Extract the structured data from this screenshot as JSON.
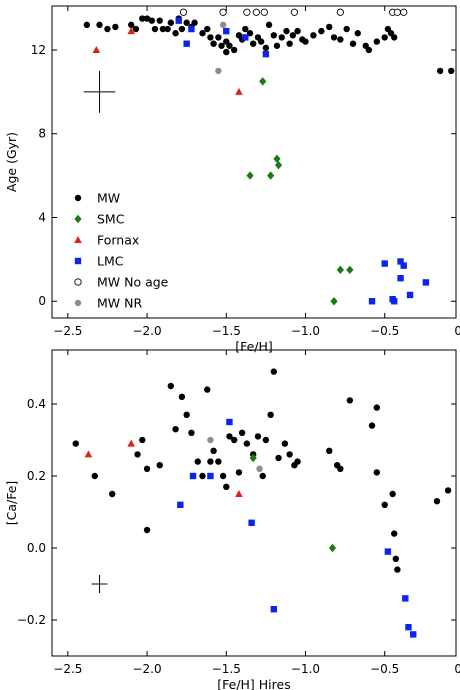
{
  "chart_data": [
    {
      "type": "scatter",
      "xlabel": "[Fe/H]",
      "ylabel": "Age (Gyr)",
      "xlim": [
        -2.6,
        -0.05
      ],
      "ylim": [
        -0.8,
        14.1
      ],
      "xticks": [
        -2.5,
        -2.0,
        -1.5,
        -1.0,
        -0.5,
        0.0
      ],
      "xtick_labels": [
        "−2.5",
        "−2.0",
        "−1.5",
        "−1.0",
        "−0.5",
        "0.0"
      ],
      "yticks": [
        0,
        4,
        8,
        12
      ],
      "ytick_labels": [
        "0",
        "4",
        "8",
        "12"
      ],
      "legend": {
        "placement": "lower-left"
      },
      "error_bar": {
        "x": -2.3,
        "y": 10.0,
        "dx": 0.1,
        "dy": 1.0
      },
      "series": [
        {
          "name": "MW",
          "marker": "circle",
          "filled": true,
          "color": "#000000",
          "points": [
            [
              -2.38,
              13.2
            ],
            [
              -2.3,
              13.2
            ],
            [
              -2.25,
              13.0
            ],
            [
              -2.2,
              13.1
            ],
            [
              -2.1,
              13.2
            ],
            [
              -2.07,
              13.0
            ],
            [
              -2.03,
              13.5
            ],
            [
              -2.0,
              13.5
            ],
            [
              -1.97,
              13.4
            ],
            [
              -1.95,
              13.0
            ],
            [
              -1.92,
              13.4
            ],
            [
              -1.9,
              13.0
            ],
            [
              -1.87,
              13.0
            ],
            [
              -1.85,
              13.3
            ],
            [
              -1.82,
              12.8
            ],
            [
              -1.8,
              13.5
            ],
            [
              -1.78,
              13.0
            ],
            [
              -1.75,
              13.3
            ],
            [
              -1.72,
              13.1
            ],
            [
              -1.7,
              13.3
            ],
            [
              -1.65,
              12.8
            ],
            [
              -1.62,
              13.0
            ],
            [
              -1.6,
              12.6
            ],
            [
              -1.58,
              12.3
            ],
            [
              -1.55,
              12.6
            ],
            [
              -1.53,
              12.2
            ],
            [
              -1.5,
              12.4
            ],
            [
              -1.5,
              11.9
            ],
            [
              -1.48,
              12.2
            ],
            [
              -1.45,
              12.0
            ],
            [
              -1.42,
              12.7
            ],
            [
              -1.4,
              12.5
            ],
            [
              -1.38,
              13.0
            ],
            [
              -1.35,
              12.8
            ],
            [
              -1.33,
              12.3
            ],
            [
              -1.3,
              12.6
            ],
            [
              -1.28,
              12.4
            ],
            [
              -1.25,
              12.1
            ],
            [
              -1.23,
              13.2
            ],
            [
              -1.2,
              12.7
            ],
            [
              -1.18,
              12.2
            ],
            [
              -1.15,
              12.6
            ],
            [
              -1.12,
              12.9
            ],
            [
              -1.1,
              12.3
            ],
            [
              -1.08,
              12.7
            ],
            [
              -1.05,
              12.9
            ],
            [
              -1.02,
              12.5
            ],
            [
              -1.0,
              12.4
            ],
            [
              -0.95,
              12.7
            ],
            [
              -0.9,
              12.9
            ],
            [
              -0.85,
              13.1
            ],
            [
              -0.82,
              12.6
            ],
            [
              -0.78,
              12.5
            ],
            [
              -0.74,
              13.0
            ],
            [
              -0.7,
              12.3
            ],
            [
              -0.67,
              12.8
            ],
            [
              -0.62,
              12.2
            ],
            [
              -0.6,
              12.0
            ],
            [
              -0.55,
              12.4
            ],
            [
              -0.5,
              12.6
            ],
            [
              -0.48,
              13.0
            ],
            [
              -0.46,
              12.8
            ],
            [
              -0.44,
              12.6
            ],
            [
              -0.15,
              11.0
            ],
            [
              -0.08,
              11.0
            ]
          ]
        },
        {
          "name": "SMC",
          "marker": "diamond",
          "filled": true,
          "color": "#1b7a12",
          "points": [
            [
              -1.27,
              10.5
            ],
            [
              -1.18,
              6.8
            ],
            [
              -1.17,
              6.5
            ],
            [
              -1.22,
              6.0
            ],
            [
              -1.35,
              6.0
            ],
            [
              -0.78,
              1.5
            ],
            [
              -0.72,
              1.5
            ],
            [
              -0.82,
              0.0
            ]
          ]
        },
        {
          "name": "Fornax",
          "marker": "triangle",
          "filled": true,
          "color": "#e0201b",
          "points": [
            [
              -2.32,
              12.0
            ],
            [
              -2.1,
              12.9
            ],
            [
              -1.42,
              10.0
            ]
          ]
        },
        {
          "name": "LMC",
          "marker": "square",
          "filled": true,
          "color": "#0b24f0",
          "points": [
            [
              -1.8,
              13.4
            ],
            [
              -1.75,
              12.3
            ],
            [
              -1.72,
              13.0
            ],
            [
              -1.5,
              12.9
            ],
            [
              -1.38,
              12.6
            ],
            [
              -1.25,
              11.8
            ],
            [
              -0.58,
              0.0
            ],
            [
              -0.5,
              1.8
            ],
            [
              -0.45,
              0.1
            ],
            [
              -0.44,
              0.0
            ],
            [
              -0.4,
              1.1
            ],
            [
              -0.4,
              1.9
            ],
            [
              -0.38,
              1.7
            ],
            [
              -0.34,
              0.3
            ],
            [
              -0.24,
              0.9
            ]
          ]
        },
        {
          "name": "MW No age",
          "marker": "circle",
          "filled": false,
          "color": "#000000",
          "points": [
            [
              -1.77,
              13.8
            ],
            [
              -1.52,
              13.8
            ],
            [
              -1.37,
              13.8
            ],
            [
              -1.31,
              13.8
            ],
            [
              -1.26,
              13.8
            ],
            [
              -1.07,
              13.8
            ],
            [
              -0.78,
              13.8
            ],
            [
              -0.45,
              13.8
            ],
            [
              -0.42,
              13.8
            ],
            [
              -0.38,
              13.8
            ]
          ]
        },
        {
          "name": "MW NR",
          "marker": "circle",
          "filled": true,
          "color": "#8c8c8c",
          "points": [
            [
              -1.55,
              11.0
            ],
            [
              -1.52,
              13.2
            ]
          ]
        }
      ]
    },
    {
      "type": "scatter",
      "xlabel": "[Fe/H] Hires",
      "ylabel": "[Ca/Fe]",
      "xlim": [
        -2.6,
        -0.05
      ],
      "ylim": [
        -0.3,
        0.55
      ],
      "xticks": [
        -2.5,
        -2.0,
        -1.5,
        -1.0,
        -0.5,
        0.0
      ],
      "xtick_labels": [
        "−2.5",
        "−2.0",
        "−1.5",
        "−1.0",
        "−0.5",
        "0.0"
      ],
      "yticks": [
        -0.2,
        0.0,
        0.2,
        0.4
      ],
      "ytick_labels": [
        "−0.2",
        "0.0",
        "0.2",
        "0.4"
      ],
      "error_bar": {
        "x": -2.3,
        "y": -0.1,
        "dx": 0.05,
        "dy": 0.025
      },
      "series": [
        {
          "name": "MW",
          "marker": "circle",
          "filled": true,
          "color": "#000000",
          "points": [
            [
              -2.45,
              0.29
            ],
            [
              -2.33,
              0.2
            ],
            [
              -2.22,
              0.15
            ],
            [
              -2.06,
              0.26
            ],
            [
              -2.03,
              0.3
            ],
            [
              -2.0,
              0.22
            ],
            [
              -2.0,
              0.05
            ],
            [
              -1.92,
              0.23
            ],
            [
              -1.85,
              0.45
            ],
            [
              -1.82,
              0.33
            ],
            [
              -1.78,
              0.42
            ],
            [
              -1.75,
              0.37
            ],
            [
              -1.72,
              0.32
            ],
            [
              -1.68,
              0.24
            ],
            [
              -1.65,
              0.2
            ],
            [
              -1.62,
              0.44
            ],
            [
              -1.6,
              0.24
            ],
            [
              -1.58,
              0.27
            ],
            [
              -1.55,
              0.24
            ],
            [
              -1.52,
              0.2
            ],
            [
              -1.5,
              0.17
            ],
            [
              -1.48,
              0.31
            ],
            [
              -1.45,
              0.3
            ],
            [
              -1.42,
              0.21
            ],
            [
              -1.4,
              0.32
            ],
            [
              -1.37,
              0.29
            ],
            [
              -1.33,
              0.26
            ],
            [
              -1.3,
              0.31
            ],
            [
              -1.27,
              0.2
            ],
            [
              -1.25,
              0.3
            ],
            [
              -1.22,
              0.37
            ],
            [
              -1.2,
              0.49
            ],
            [
              -1.17,
              0.25
            ],
            [
              -1.13,
              0.29
            ],
            [
              -1.1,
              0.26
            ],
            [
              -1.07,
              0.23
            ],
            [
              -1.05,
              0.24
            ],
            [
              -0.85,
              0.27
            ],
            [
              -0.8,
              0.23
            ],
            [
              -0.78,
              0.22
            ],
            [
              -0.72,
              0.41
            ],
            [
              -0.58,
              0.34
            ],
            [
              -0.55,
              0.39
            ],
            [
              -0.55,
              0.21
            ],
            [
              -0.5,
              0.12
            ],
            [
              -0.45,
              0.15
            ],
            [
              -0.44,
              0.04
            ],
            [
              -0.43,
              -0.03
            ],
            [
              -0.42,
              -0.06
            ],
            [
              -0.17,
              0.13
            ],
            [
              -0.1,
              0.16
            ]
          ]
        },
        {
          "name": "SMC",
          "marker": "diamond",
          "filled": true,
          "color": "#1b7a12",
          "points": [
            [
              -1.33,
              0.25
            ],
            [
              -0.83,
              0.0
            ]
          ]
        },
        {
          "name": "Fornax",
          "marker": "triangle",
          "filled": true,
          "color": "#e0201b",
          "points": [
            [
              -2.37,
              0.26
            ],
            [
              -2.1,
              0.29
            ],
            [
              -1.42,
              0.15
            ]
          ]
        },
        {
          "name": "LMC",
          "marker": "square",
          "filled": true,
          "color": "#0b24f0",
          "points": [
            [
              -1.79,
              0.12
            ],
            [
              -1.71,
              0.2
            ],
            [
              -1.6,
              0.2
            ],
            [
              -1.48,
              0.35
            ],
            [
              -1.34,
              0.07
            ],
            [
              -1.2,
              -0.17
            ],
            [
              -0.48,
              -0.01
            ],
            [
              -0.37,
              -0.14
            ],
            [
              -0.35,
              -0.22
            ],
            [
              -0.32,
              -0.24
            ]
          ]
        },
        {
          "name": "MW NR",
          "marker": "circle",
          "filled": true,
          "color": "#8c8c8c",
          "points": [
            [
              -1.6,
              0.3
            ],
            [
              -1.29,
              0.22
            ]
          ]
        }
      ]
    }
  ]
}
